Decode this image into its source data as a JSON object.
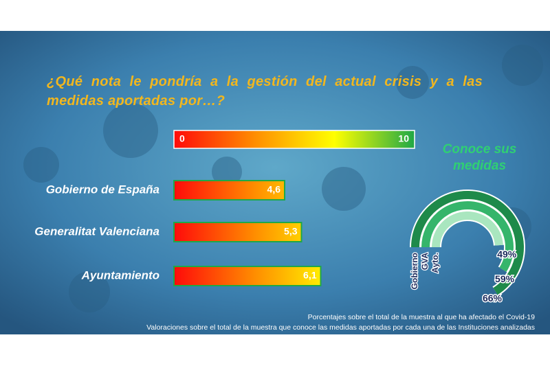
{
  "chart_data": [
    {
      "type": "gradient-bar",
      "title": "¿Qué nota le pondría a la gestión del actual crisis y a las medidas aportadas por…?",
      "categories": [
        "Gobierno de España",
        "Generalitat Valenciana",
        "Ayuntamiento"
      ],
      "values": [
        4.6,
        5.3,
        6.1
      ],
      "value_labels": [
        "4,6",
        "5,3",
        "6,1"
      ],
      "xlim": [
        0,
        10
      ],
      "xticks": [
        0,
        10
      ],
      "gradient": [
        "#ff0a0a",
        "#ff8c00",
        "#ffff00",
        "#1fa846"
      ]
    },
    {
      "type": "radial",
      "title": "Conoce sus medidas",
      "categories": [
        "Gobierno",
        "GVA",
        "Ayto."
      ],
      "values": [
        66,
        59,
        49
      ],
      "value_labels": [
        "66%",
        "59%",
        "49%"
      ],
      "colors": [
        "#1e8a4a",
        "#35b56b",
        "#a9e6bf"
      ]
    }
  ],
  "notes": [
    "Porcentajes sobre el total de la muestra al que ha afectado el Covid-19",
    "Valoraciones sobre el total de la muestra que conoce las medidas aportadas por cada una de las Instituciones analizadas"
  ]
}
